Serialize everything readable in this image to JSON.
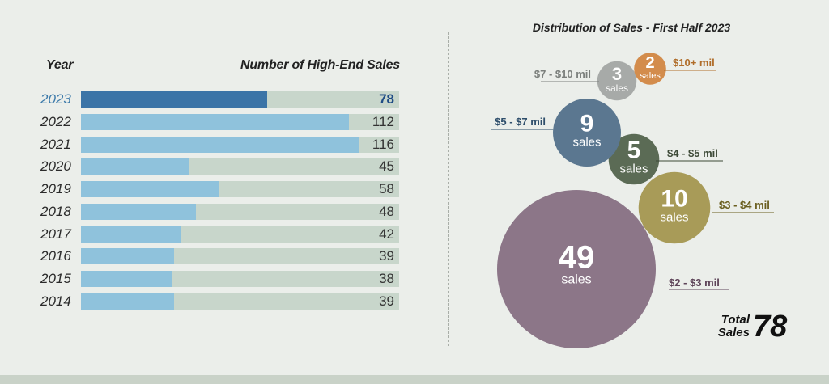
{
  "left_panel": {
    "year_header": "Year",
    "value_header": "Number of High-End Sales"
  },
  "right_panel": {
    "title": "Distribution of Sales - First Half 2023",
    "total_label_line1": "Total",
    "total_label_line2": "Sales",
    "total_value": "78"
  },
  "chart_data": [
    {
      "type": "bar",
      "orientation": "horizontal",
      "categories": [
        "2023",
        "2022",
        "2021",
        "2020",
        "2019",
        "2018",
        "2017",
        "2016",
        "2015",
        "2014"
      ],
      "values": [
        78,
        112,
        116,
        45,
        58,
        48,
        42,
        39,
        38,
        39
      ],
      "xlim": [
        0,
        133
      ],
      "highlight": "2023",
      "colors": {
        "bar": "#8fc2dc",
        "highlight": "#3b74a7",
        "track": "#c8d6cb"
      }
    },
    {
      "type": "bubble",
      "unit_label": "sales",
      "series": [
        {
          "name": "$2 - $3 mil",
          "value": 49,
          "color": "#8c7688",
          "label_color": "#5e4459"
        },
        {
          "name": "$3 - $4 mil",
          "value": 10,
          "color": "#a89b58",
          "label_color": "#6a5e1f"
        },
        {
          "name": "$4 - $5 mil",
          "value": 5,
          "color": "#5b6b55",
          "label_color": "#3d4a37"
        },
        {
          "name": "$5 - $7 mil",
          "value": 9,
          "color": "#5b7790",
          "label_color": "#2e4e6b"
        },
        {
          "name": "$7 - $10 mil",
          "value": 3,
          "color": "#a7aaa8",
          "label_color": "#7b7f7c"
        },
        {
          "name": "$10+ mil",
          "value": 2,
          "color": "#d38c4c",
          "label_color": "#b06d2a"
        }
      ]
    }
  ]
}
